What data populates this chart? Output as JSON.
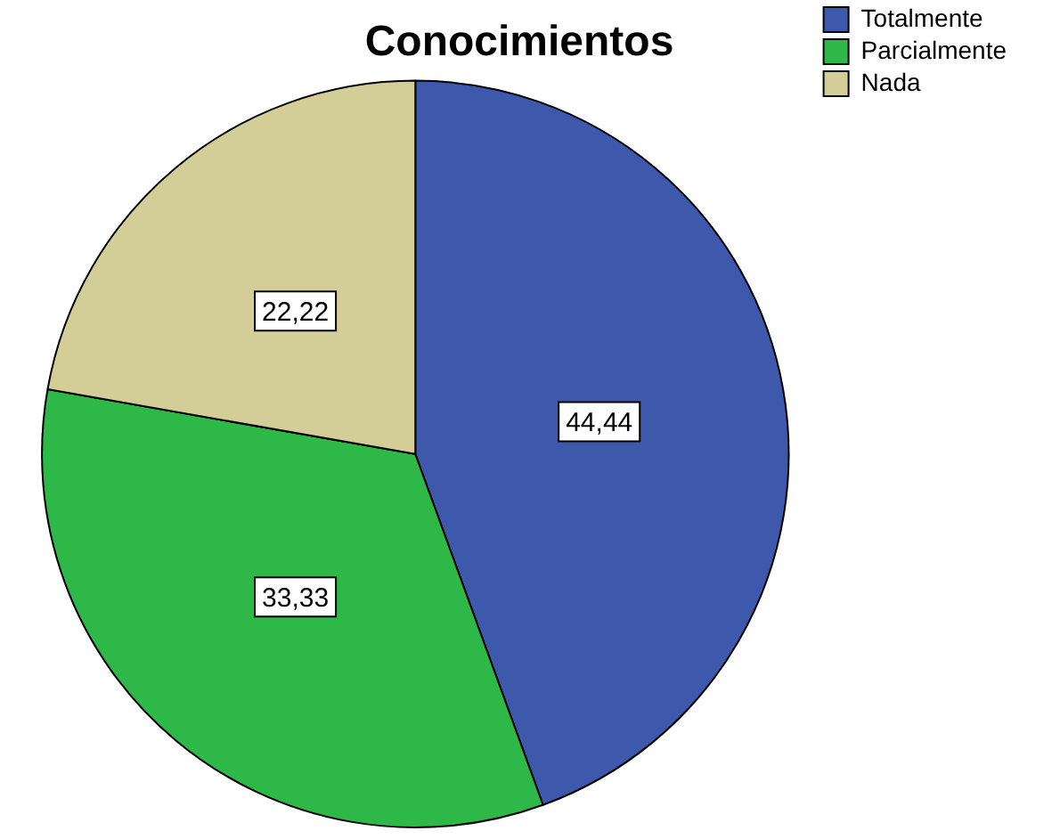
{
  "chart_data": {
    "type": "pie",
    "title": "Conocimientos",
    "categories": [
      "Totalmente",
      "Parcialmente",
      "Nada"
    ],
    "values": [
      44.44,
      33.33,
      22.22
    ],
    "colors": [
      "#3e58ac",
      "#2eb848",
      "#d3ce97"
    ],
    "value_labels": [
      "44,44",
      "33,33",
      "22,22"
    ],
    "legend": "top right"
  }
}
